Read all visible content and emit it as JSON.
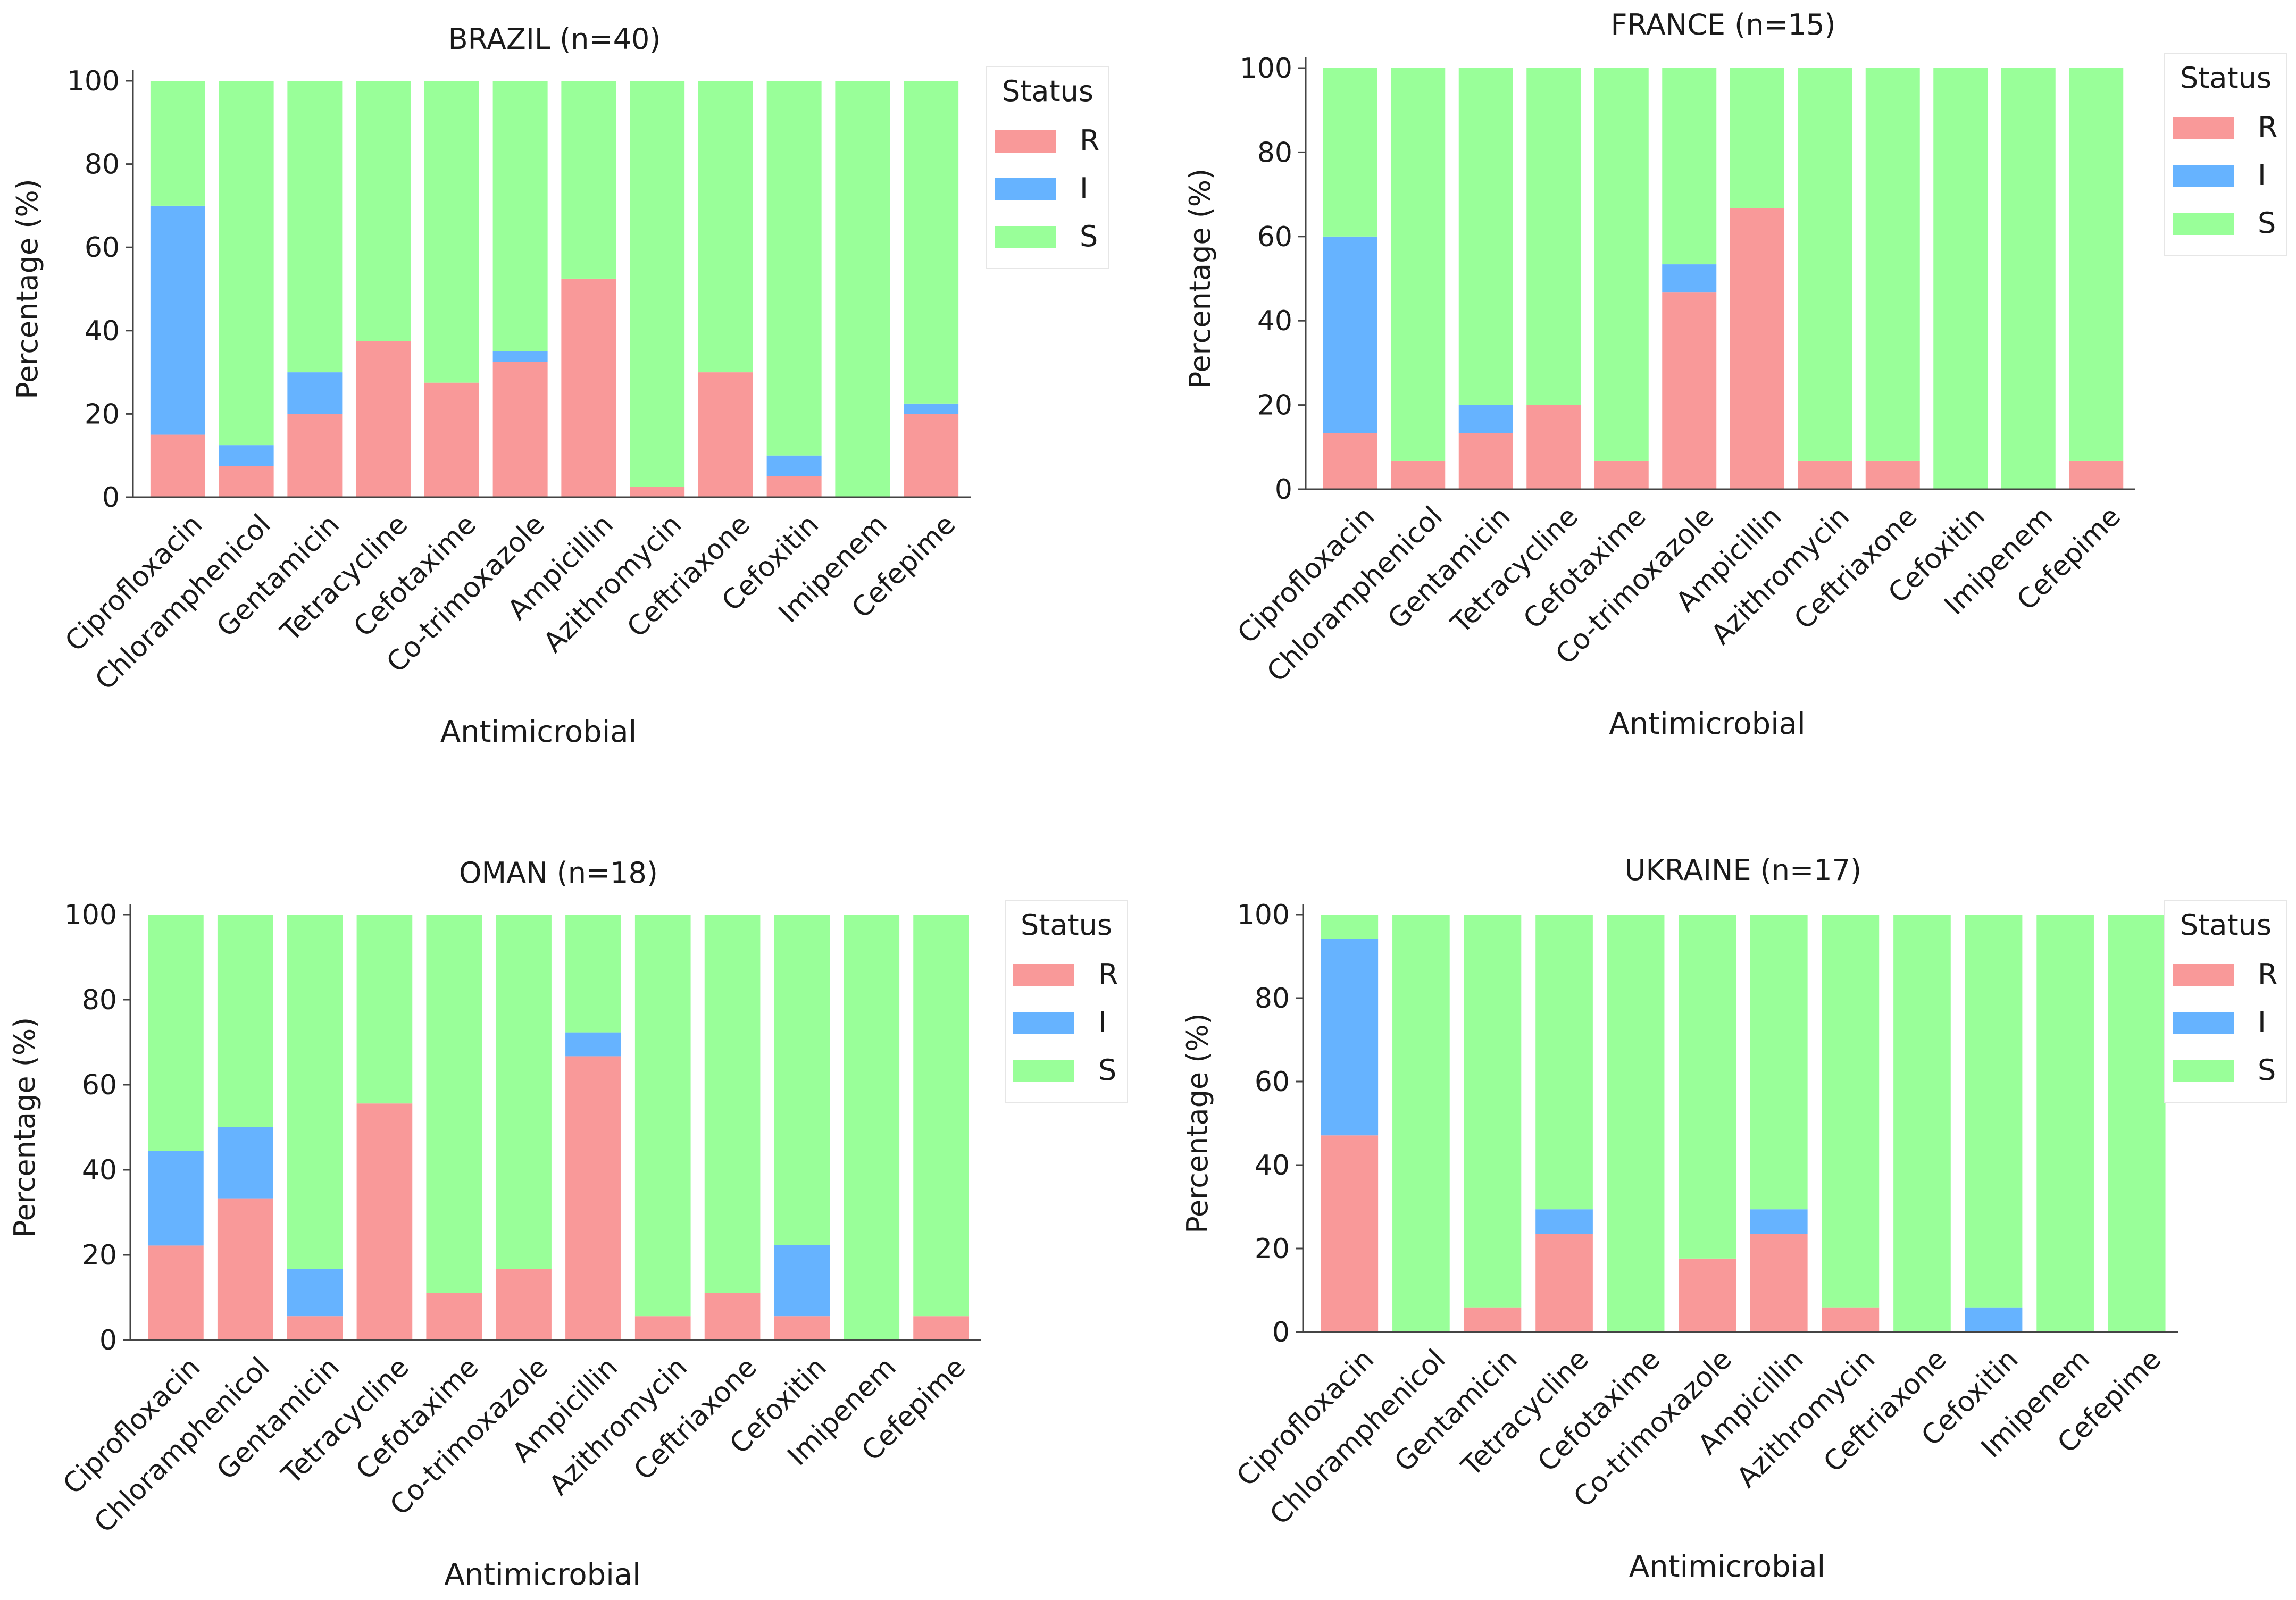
{
  "figure": {
    "legend_title": "Status",
    "status_labels": [
      "R",
      "I",
      "S"
    ],
    "colors": {
      "R": "#f99999",
      "I": "#66b3ff",
      "S": "#99ff99"
    }
  },
  "chart_data": [
    {
      "type": "bar",
      "stacked": true,
      "title": "BRAZIL (n=40)",
      "xlabel": "Antimicrobial",
      "ylabel": "Percentage (%)",
      "ylim": [
        0,
        100
      ],
      "yticks": [
        "0",
        "20",
        "40",
        "60",
        "80",
        "100"
      ],
      "legend_position": "top-right",
      "categories": [
        "Ciprofloxacin",
        "Chloramphenicol",
        "Gentamicin",
        "Tetracycline",
        "Cefotaxime",
        "Co-trimoxazole",
        "Ampicillin",
        "Azithromycin",
        "Ceftriaxone",
        "Cefoxitin",
        "Imipenem",
        "Cefepime"
      ],
      "series": [
        {
          "name": "R",
          "values": [
            15,
            7.5,
            20,
            37.5,
            27.5,
            32.5,
            52.5,
            2.5,
            30,
            5,
            0,
            20
          ]
        },
        {
          "name": "I",
          "values": [
            55,
            5,
            10,
            0,
            0,
            2.5,
            0,
            0,
            0,
            5,
            0,
            2.5
          ]
        },
        {
          "name": "S",
          "values": [
            30,
            87.5,
            70,
            62.5,
            72.5,
            65,
            47.5,
            97.5,
            70,
            90,
            100,
            77.5
          ]
        }
      ]
    },
    {
      "type": "bar",
      "stacked": true,
      "title": "FRANCE (n=15)",
      "xlabel": "Antimicrobial",
      "ylabel": "Percentage (%)",
      "ylim": [
        0,
        100
      ],
      "yticks": [
        "0",
        "20",
        "40",
        "60",
        "80",
        "100"
      ],
      "legend_position": "top-right",
      "categories": [
        "Ciprofloxacin",
        "Chloramphenicol",
        "Gentamicin",
        "Tetracycline",
        "Cefotaxime",
        "Co-trimoxazole",
        "Ampicillin",
        "Azithromycin",
        "Ceftriaxone",
        "Cefoxitin",
        "Imipenem",
        "Cefepime"
      ],
      "series": [
        {
          "name": "R",
          "values": [
            13.3,
            6.7,
            13.3,
            20,
            6.7,
            46.7,
            66.7,
            6.7,
            6.7,
            0,
            0,
            6.7
          ]
        },
        {
          "name": "I",
          "values": [
            46.7,
            0,
            6.7,
            0,
            0,
            6.7,
            0,
            0,
            0,
            0,
            0,
            0
          ]
        },
        {
          "name": "S",
          "values": [
            40,
            93.3,
            80,
            80,
            93.3,
            46.6,
            33.3,
            93.3,
            93.3,
            100,
            100,
            93.3
          ]
        }
      ]
    },
    {
      "type": "bar",
      "stacked": true,
      "title": "OMAN (n=18)",
      "xlabel": "Antimicrobial",
      "ylabel": "Percentage (%)",
      "ylim": [
        0,
        100
      ],
      "yticks": [
        "0",
        "20",
        "40",
        "60",
        "80",
        "100"
      ],
      "legend_position": "top-right",
      "categories": [
        "Ciprofloxacin",
        "Chloramphenicol",
        "Gentamicin",
        "Tetracycline",
        "Cefotaxime",
        "Co-trimoxazole",
        "Ampicillin",
        "Azithromycin",
        "Ceftriaxone",
        "Cefoxitin",
        "Imipenem",
        "Cefepime"
      ],
      "series": [
        {
          "name": "R",
          "values": [
            22.2,
            33.3,
            5.6,
            55.6,
            11.1,
            16.7,
            66.7,
            5.6,
            11.1,
            5.6,
            0,
            5.6
          ]
        },
        {
          "name": "I",
          "values": [
            22.2,
            16.7,
            11.1,
            0,
            0,
            0,
            5.6,
            0,
            0,
            16.7,
            0,
            0
          ]
        },
        {
          "name": "S",
          "values": [
            55.6,
            50,
            83.3,
            44.4,
            88.9,
            83.3,
            27.7,
            94.4,
            88.9,
            77.7,
            100,
            94.4
          ]
        }
      ]
    },
    {
      "type": "bar",
      "stacked": true,
      "title": "UKRAINE (n=17)",
      "xlabel": "Antimicrobial",
      "ylabel": "Percentage (%)",
      "ylim": [
        0,
        100
      ],
      "yticks": [
        "0",
        "20",
        "40",
        "60",
        "80",
        "100"
      ],
      "legend_position": "top-right",
      "categories": [
        "Ciprofloxacin",
        "Chloramphenicol",
        "Gentamicin",
        "Tetracycline",
        "Cefotaxime",
        "Co-trimoxazole",
        "Ampicillin",
        "Azithromycin",
        "Ceftriaxone",
        "Cefoxitin",
        "Imipenem",
        "Cefepime"
      ],
      "series": [
        {
          "name": "R",
          "values": [
            47.1,
            0,
            5.9,
            23.5,
            0,
            17.6,
            23.5,
            5.9,
            0,
            0,
            0,
            0
          ]
        },
        {
          "name": "I",
          "values": [
            47.1,
            0,
            0,
            5.9,
            0,
            0,
            5.9,
            0,
            0,
            5.9,
            0,
            0
          ]
        },
        {
          "name": "S",
          "values": [
            5.8,
            100,
            94.1,
            70.6,
            100,
            82.4,
            70.6,
            94.1,
            100,
            94.1,
            100,
            100
          ]
        }
      ]
    }
  ]
}
